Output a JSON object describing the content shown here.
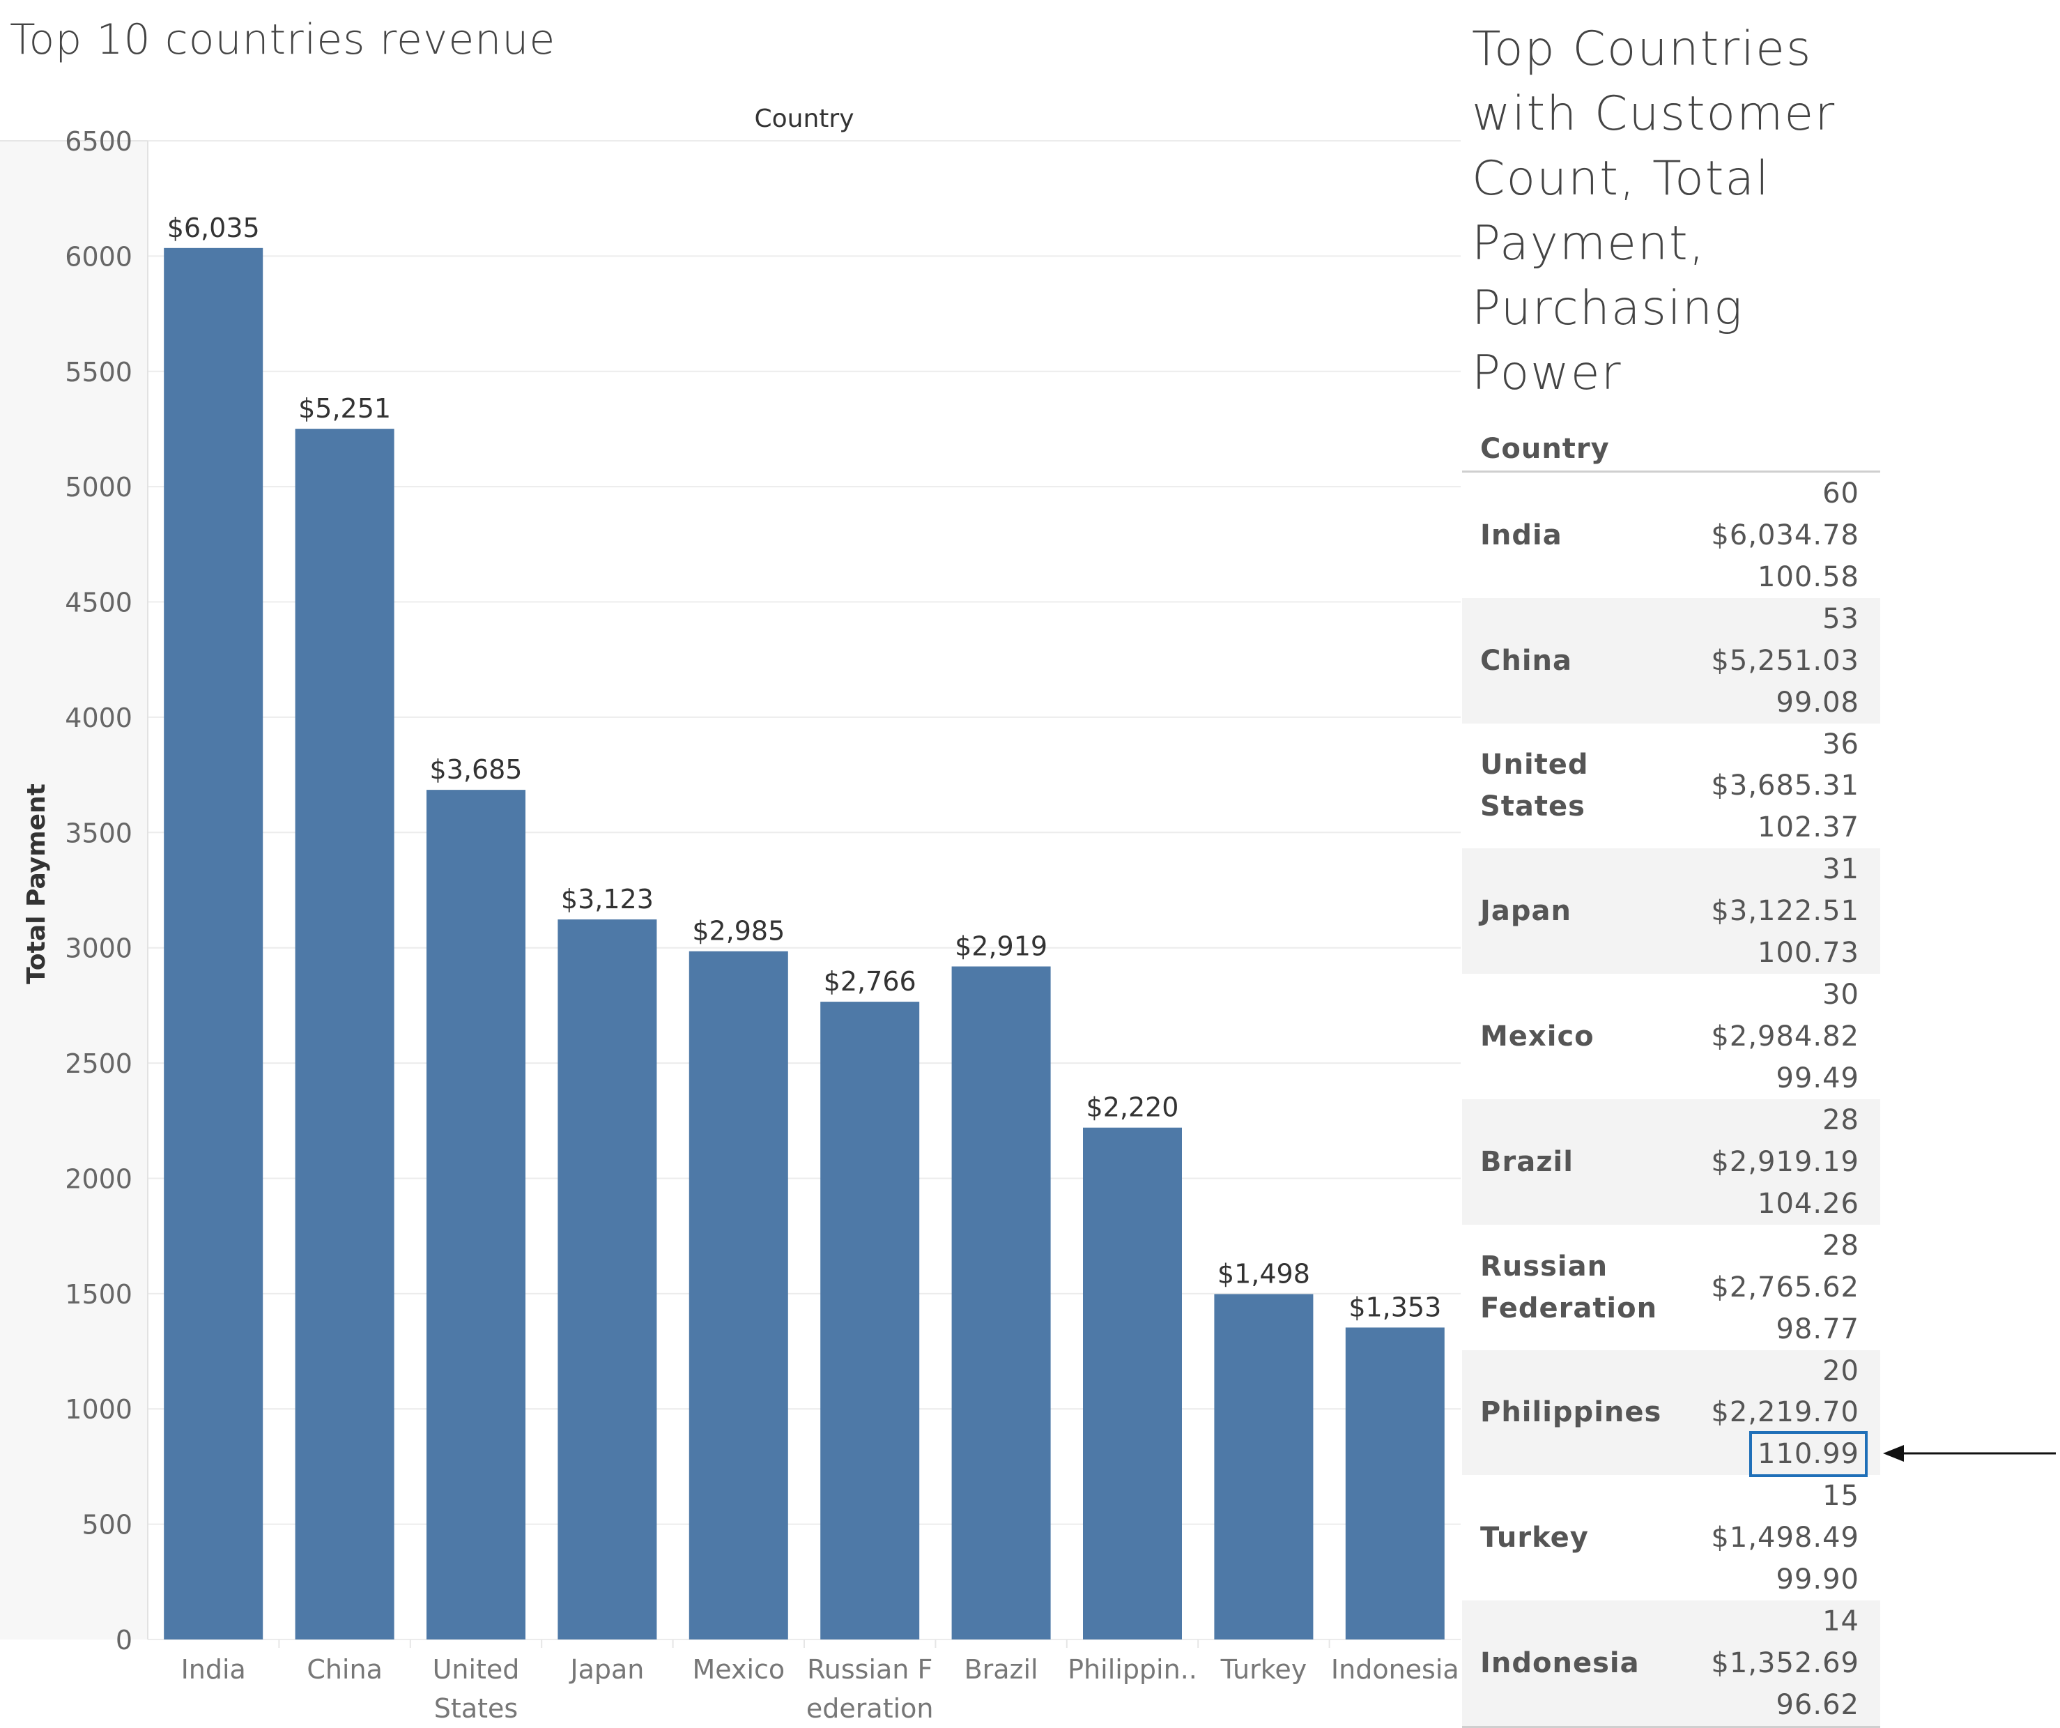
{
  "chart_data": {
    "type": "bar",
    "title": "Top 10 countries revenue",
    "xlabel": "Country",
    "ylabel": "Total Payment",
    "ylim": [
      0,
      6500
    ],
    "yticks": [
      0,
      500,
      1000,
      1500,
      2000,
      2500,
      3000,
      3500,
      4000,
      4500,
      5000,
      5500,
      6000,
      6500
    ],
    "categories": [
      "India",
      "China",
      "United States",
      "Japan",
      "Mexico",
      "Russian Federation",
      "Brazil",
      "Philippines",
      "Turkey",
      "Indonesia"
    ],
    "category_labels": [
      [
        "India"
      ],
      [
        "China"
      ],
      [
        "United",
        "States"
      ],
      [
        "Japan"
      ],
      [
        "Mexico"
      ],
      [
        "Russian F",
        "ederation"
      ],
      [
        "Brazil"
      ],
      [
        "Philippin.."
      ],
      [
        "Turkey"
      ],
      [
        "Indonesia"
      ]
    ],
    "values": [
      6035,
      5251,
      3685,
      3123,
      2985,
      2766,
      2919,
      2220,
      1498,
      1353
    ],
    "value_labels": [
      "$6,035",
      "$5,251",
      "$3,685",
      "$3,123",
      "$2,985",
      "$2,766",
      "$2,919",
      "$2,220",
      "$1,498",
      "$1,353"
    ],
    "bar_color": "#4e79a7",
    "grid": true
  },
  "table": {
    "title": "Top Countries with Customer Count, Total Payment, Purchasing Power",
    "header": "Country",
    "rows": [
      {
        "country": "India",
        "count": "60",
        "payment": "$6,034.78",
        "power": "100.58"
      },
      {
        "country": "China",
        "count": "53",
        "payment": "$5,251.03",
        "power": "99.08"
      },
      {
        "country": "United States",
        "count": "36",
        "payment": "$3,685.31",
        "power": "102.37"
      },
      {
        "country": "Japan",
        "count": "31",
        "payment": "$3,122.51",
        "power": "100.73"
      },
      {
        "country": "Mexico",
        "count": "30",
        "payment": "$2,984.82",
        "power": "99.49"
      },
      {
        "country": "Brazil",
        "count": "28",
        "payment": "$2,919.19",
        "power": "104.26"
      },
      {
        "country": "Russian Federation",
        "count": "28",
        "payment": "$2,765.62",
        "power": "98.77"
      },
      {
        "country": "Philippines",
        "count": "20",
        "payment": "$2,219.70",
        "power": "110.99",
        "highlight": true
      },
      {
        "country": "Turkey",
        "count": "15",
        "payment": "$1,498.49",
        "power": "99.90"
      },
      {
        "country": "Indonesia",
        "count": "14",
        "payment": "$1,352.69",
        "power": "96.62"
      }
    ],
    "highlight_color": "#1f6fb8"
  }
}
